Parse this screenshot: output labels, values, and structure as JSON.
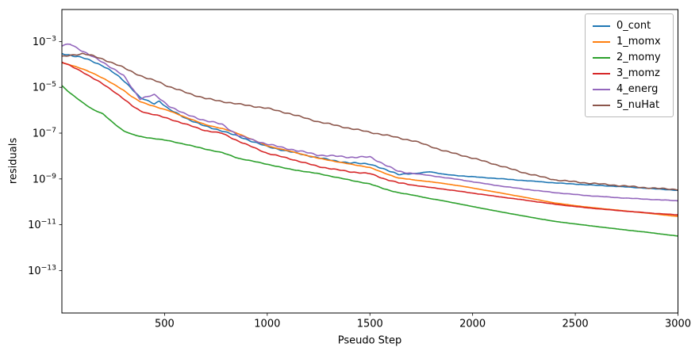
{
  "chart_data": {
    "type": "line",
    "title": "",
    "xlabel": "Pseudo Step",
    "ylabel": "residuals",
    "x_scale": "linear",
    "y_scale": "log",
    "xlim": [
      0,
      3000
    ],
    "ylim": [
      1.4e-15,
      0.025
    ],
    "xticks": [
      500,
      1000,
      1500,
      2000,
      2500,
      3000
    ],
    "ytick_exponents": [
      -3,
      -5,
      -7,
      -9,
      -11,
      -13
    ],
    "grid": false,
    "legend_position": "upper right",
    "frame_color": "#000000",
    "steps": [
      0,
      40,
      100,
      150,
      200,
      250,
      300,
      340,
      380,
      420,
      450,
      475,
      520,
      600,
      700,
      780,
      860,
      1000,
      1100,
      1250,
      1400,
      1500,
      1570,
      1640,
      1720,
      1790,
      1860,
      1950,
      2100,
      2250,
      2400,
      2550,
      2700,
      2850,
      3000
    ],
    "series": [
      {
        "label": "0_cont",
        "color": "#1f77b4",
        "noise": 0.8,
        "values": [
          0.0003,
          0.00026,
          0.0002,
          0.00014,
          8.9e-05,
          4.5e-05,
          2e-05,
          8.9e-06,
          3.5e-06,
          2.4e-06,
          1.9e-06,
          2.5e-06,
          1.1e-06,
          4.7e-07,
          2e-07,
          1.3e-07,
          7.1e-08,
          2.5e-08,
          1.6e-08,
          8.5e-09,
          5e-09,
          4.5e-09,
          2.5e-09,
          1.6e-09,
          1.7e-09,
          2.1e-09,
          1.6e-09,
          1.35e-09,
          1.07e-09,
          8.5e-10,
          6.8e-10,
          5.6e-10,
          4.7e-10,
          3.9e-10,
          3.2e-10
        ]
      },
      {
        "label": "1_momx",
        "color": "#ff7f0e",
        "noise": 0.25,
        "values": [
          0.00012,
          9.5e-05,
          6.3e-05,
          4.2e-05,
          2.5e-05,
          1.4e-05,
          7.6e-06,
          4e-06,
          2.4e-06,
          1.8e-06,
          1.5e-06,
          1.26e-06,
          9.5e-07,
          5e-07,
          2.3e-07,
          1.6e-07,
          9.5e-08,
          2.8e-08,
          1.7e-08,
          7.9e-09,
          4.5e-09,
          3.2e-09,
          1.8e-09,
          1.1e-09,
          8.9e-10,
          7.6e-10,
          6.3e-10,
          4.8e-10,
          2.8e-10,
          1.6e-10,
          8.9e-11,
          6e-11,
          4.4e-11,
          3.2e-11,
          2.3e-11
        ]
      },
      {
        "label": "2_momy",
        "color": "#2ca02c",
        "noise": 0.3,
        "values": [
          1.2e-05,
          5.6e-06,
          2.2e-06,
          1.1e-06,
          6.8e-07,
          2.8e-07,
          1.26e-07,
          8.9e-08,
          7.1e-08,
          6.3e-08,
          5.8e-08,
          5.4e-08,
          4.7e-08,
          3.3e-08,
          2e-08,
          1.4e-08,
          7.9e-09,
          4.4e-09,
          2.8e-09,
          1.7e-09,
          8.9e-10,
          6e-10,
          3.7e-10,
          2.5e-10,
          1.9e-10,
          1.4e-10,
          1.1e-10,
          7.6e-11,
          4.2e-11,
          2.4e-11,
          1.4e-11,
          9.5e-12,
          6.6e-12,
          4.7e-12,
          3.2e-12
        ]
      },
      {
        "label": "3_momz",
        "color": "#d62728",
        "noise": 0.55,
        "values": [
          0.000126,
          8.7e-05,
          4.8e-05,
          2.6e-05,
          1.4e-05,
          7.1e-06,
          3.2e-06,
          1.6e-06,
          9.5e-07,
          7.2e-07,
          6.3e-07,
          5.5e-07,
          4.2e-07,
          2.5e-07,
          1.3e-07,
          1e-07,
          4.5e-08,
          1.3e-08,
          7.9e-09,
          3.5e-09,
          2.1e-09,
          1.7e-09,
          1e-09,
          6.6e-10,
          5.2e-10,
          4.3e-10,
          3.6e-10,
          2.8e-10,
          1.8e-10,
          1.2e-10,
          7.9e-11,
          5.6e-11,
          4.2e-11,
          3.3e-11,
          2.7e-11
        ]
      },
      {
        "label": "4_energ",
        "color": "#9467bd",
        "noise": 0.9,
        "values": [
          0.00063,
          0.00076,
          0.00038,
          0.00021,
          0.00012,
          6.6e-05,
          3.3e-05,
          1e-05,
          3.3e-06,
          4.2e-06,
          4.7e-06,
          3.3e-06,
          1.6e-06,
          6.6e-07,
          3.4e-07,
          2.4e-07,
          7.9e-08,
          3.4e-08,
          2.1e-08,
          1.07e-08,
          8.9e-09,
          9.3e-09,
          4.5e-09,
          2.1e-09,
          1.7e-09,
          1.4e-09,
          1.15e-09,
          8.9e-10,
          5.5e-10,
          3.6e-10,
          2.5e-10,
          1.9e-10,
          1.55e-10,
          1.3e-10,
          1.1e-10
        ]
      },
      {
        "label": "5_nuHat",
        "color": "#8c564b",
        "noise": 0.8,
        "values": [
          0.00022,
          0.00026,
          0.0003,
          0.00024,
          0.00017,
          0.00011,
          7.1e-05,
          4.8e-05,
          3.2e-05,
          2.3e-05,
          2e-05,
          1.7e-05,
          1.1e-05,
          6.3e-06,
          3.3e-06,
          2.4e-06,
          1.8e-06,
          1.2e-06,
          7.6e-07,
          3.2e-07,
          1.6e-07,
          1.07e-07,
          8.3e-08,
          6.3e-08,
          4.5e-08,
          2.8e-08,
          1.7e-08,
          1.05e-08,
          4.5e-09,
          1.9e-09,
          9.3e-10,
          6.6e-10,
          5.2e-10,
          4.2e-10,
          3.5e-10
        ]
      }
    ]
  }
}
